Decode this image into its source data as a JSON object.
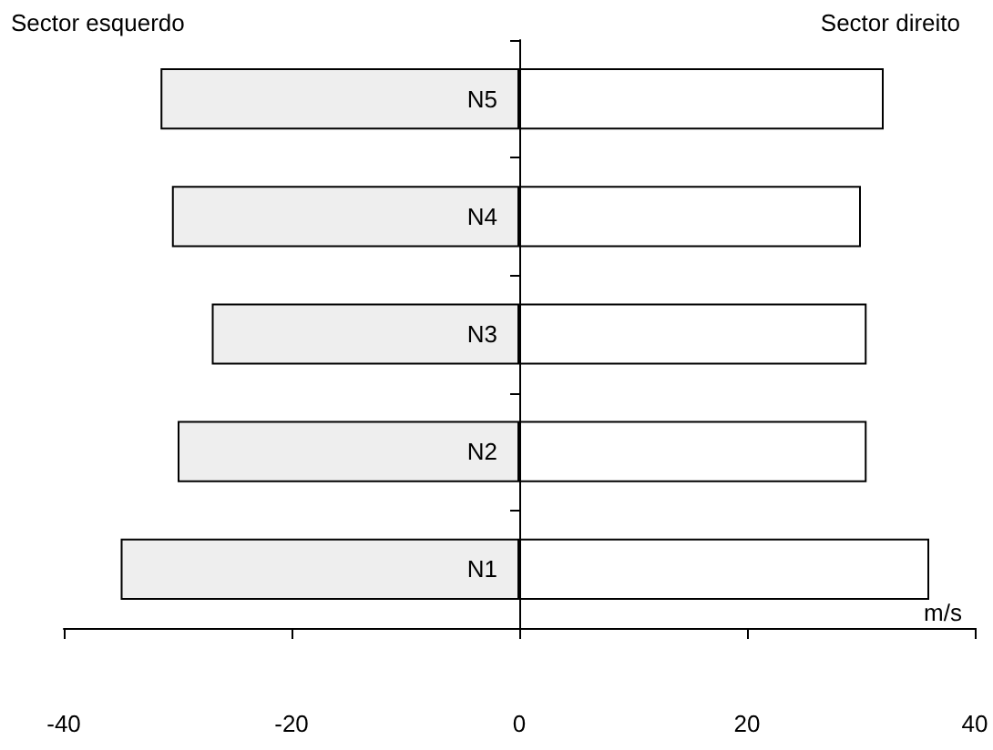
{
  "chart_data": {
    "type": "bar",
    "orientation": "horizontal",
    "categories": [
      "N5",
      "N4",
      "N3",
      "N2",
      "N1"
    ],
    "xlabel": "m/s",
    "series": [
      {
        "color": "#eeeeee",
        "values": [
          -31.5,
          -30.5,
          -27,
          -30,
          -35
        ]
      },
      {
        "color": "#ffffff",
        "values": [
          32,
          30,
          30.5,
          30.5,
          36
        ]
      }
    ],
    "stacked": true,
    "xlim": [
      -40,
      40
    ],
    "xticks": [
      -40,
      -20,
      0,
      20,
      40
    ],
    "annotations": [
      "Sector esquerdo",
      "Sector direito"
    ]
  }
}
